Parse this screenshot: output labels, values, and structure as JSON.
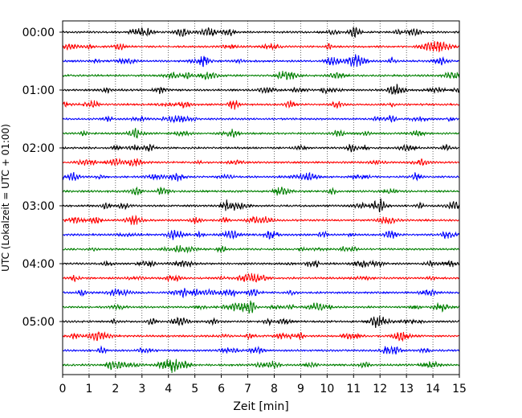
{
  "chart_data": {
    "type": "line",
    "xlabel": "Zeit  [min]",
    "ylabel": "UTC (Lokalzeit = UTC + 01:00)",
    "xlim": [
      0,
      15
    ],
    "x_ticks": [
      "0",
      "1",
      "2",
      "3",
      "4",
      "5",
      "6",
      "7",
      "8",
      "9",
      "10",
      "11",
      "12",
      "13",
      "14",
      "15"
    ],
    "y_ticks": [
      "00:00",
      "01:00",
      "02:00",
      "03:00",
      "04:00",
      "05:00"
    ],
    "grid": "vertical dotted",
    "trace_interval_min": 15,
    "trace_count": 24,
    "trace_colors": [
      "#000000",
      "#ff0000",
      "#0000ff",
      "#008000"
    ]
  }
}
